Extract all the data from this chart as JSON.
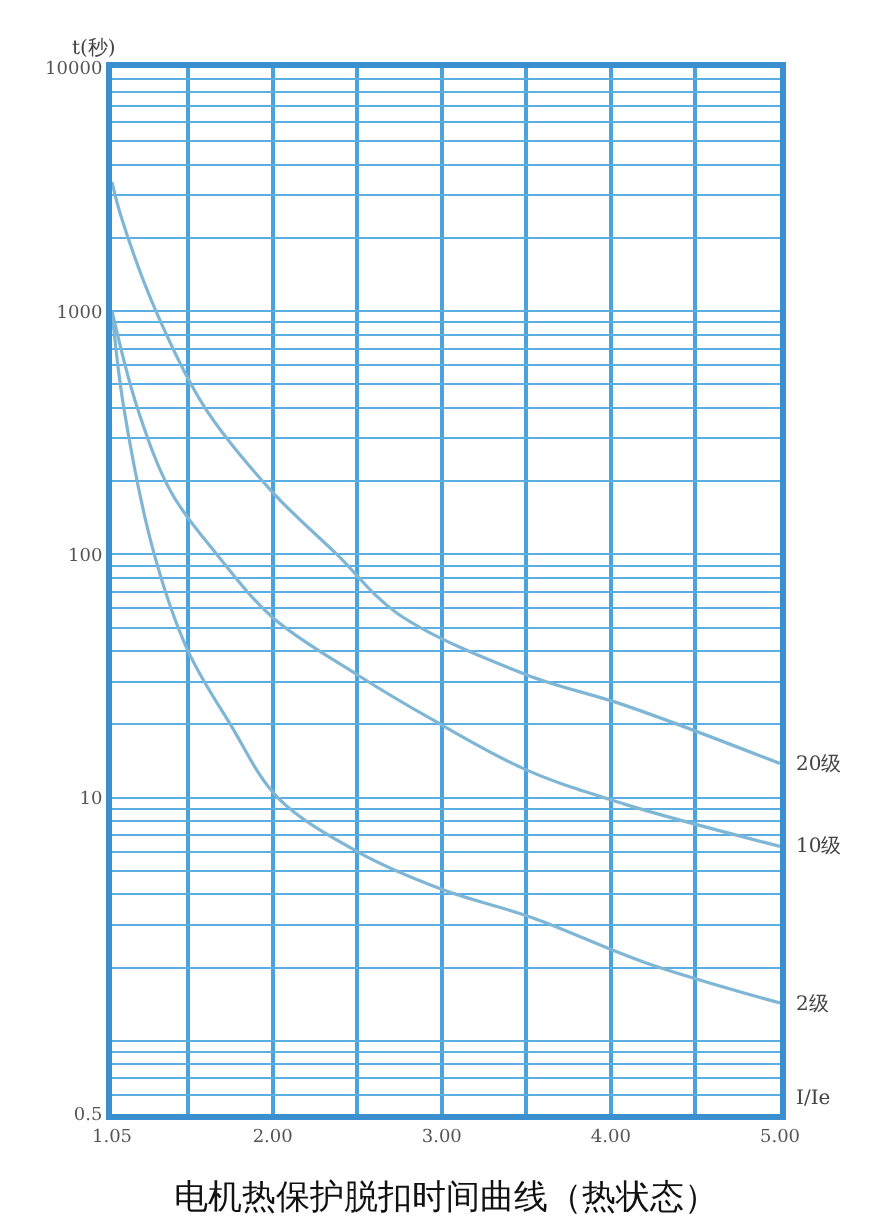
{
  "chart_data": {
    "type": "line",
    "title": "电机热保护脱扣时间曲线（热状态）",
    "xlabel": "I/Ie",
    "ylabel": "t(秒)",
    "log": "y",
    "grid": true,
    "legend": false,
    "marker": "none",
    "line_style": "solid",
    "xlim": [
      1.05,
      5
    ],
    "xticks": [
      {
        "value": 1.05,
        "label": "1.05"
      },
      {
        "value": 1.5,
        "label": null
      },
      {
        "value": 2,
        "label": "2.00"
      },
      {
        "value": 2.5,
        "label": null
      },
      {
        "value": 3,
        "label": "3.00"
      },
      {
        "value": 3.5,
        "label": null
      },
      {
        "value": 4,
        "label": "4.00"
      },
      {
        "value": 4.5,
        "label": null
      },
      {
        "value": 5,
        "label": "5.00"
      }
    ],
    "ylim": [
      0.5,
      10000
    ],
    "yticks": [
      0.5,
      {
        "value": 0.6,
        "label": null
      },
      {
        "value": 0.7,
        "label": null
      },
      {
        "value": 0.8,
        "label": null
      },
      {
        "value": 0.9,
        "label": null
      },
      {
        "value": 1,
        "label": null
      },
      {
        "value": 2,
        "label": null
      },
      {
        "value": 3,
        "label": null
      },
      {
        "value": 4,
        "label": null
      },
      {
        "value": 5,
        "label": null
      },
      {
        "value": 6,
        "label": null
      },
      {
        "value": 7,
        "label": null
      },
      {
        "value": 8,
        "label": null
      },
      {
        "value": 9,
        "label": null
      },
      10,
      {
        "value": 20,
        "label": null
      },
      {
        "value": 30,
        "label": null
      },
      {
        "value": 40,
        "label": null
      },
      {
        "value": 50,
        "label": null
      },
      {
        "value": 60,
        "label": null
      },
      {
        "value": 70,
        "label": null
      },
      {
        "value": 80,
        "label": null
      },
      {
        "value": 90,
        "label": null
      },
      100,
      {
        "value": 200,
        "label": null
      },
      {
        "value": 300,
        "label": null
      },
      {
        "value": 400,
        "label": null
      },
      {
        "value": 500,
        "label": null
      },
      {
        "value": 600,
        "label": null
      },
      {
        "value": 700,
        "label": null
      },
      {
        "value": 800,
        "label": null
      },
      {
        "value": 900,
        "label": null
      },
      1000,
      {
        "value": 2000,
        "label": null
      },
      {
        "value": 3000,
        "label": null
      },
      {
        "value": 4000,
        "label": null
      },
      {
        "value": 5000,
        "label": null
      },
      {
        "value": 6000,
        "label": null
      },
      {
        "value": 7000,
        "label": null
      },
      {
        "value": 8000,
        "label": null
      },
      {
        "value": 9000,
        "label": null
      },
      10000
    ],
    "series": [
      {
        "name": "20级",
        "color": "#7fb6d6",
        "x": [
          1.05,
          1.1,
          1.31,
          1.6,
          2.0,
          2.38,
          2.74,
          3.5,
          4.08,
          5
        ],
        "values": [
          3400,
          2500,
          1000,
          400,
          180,
          100,
          57,
          32,
          24,
          13.8
        ]
      },
      {
        "name": "10级",
        "color": "#7fb6d6",
        "x": [
          1.05,
          1.2,
          1.4,
          1.67,
          2.0,
          2.5,
          2.94,
          3.5,
          4.08,
          5
        ],
        "values": [
          1000,
          400,
          180,
          100,
          55,
          32,
          21,
          13,
          9.4,
          6.3
        ]
      },
      {
        "name": "2级",
        "color": "#7fb6d6",
        "x": [
          1.05,
          1.12,
          1.3,
          1.5,
          1.75,
          2.03,
          2.5,
          3.0,
          3.54,
          4.2,
          5
        ],
        "values": [
          1000,
          400,
          100,
          40,
          20,
          10,
          6,
          4.2,
          3.2,
          2.1,
          1.43
        ]
      }
    ]
  }
}
